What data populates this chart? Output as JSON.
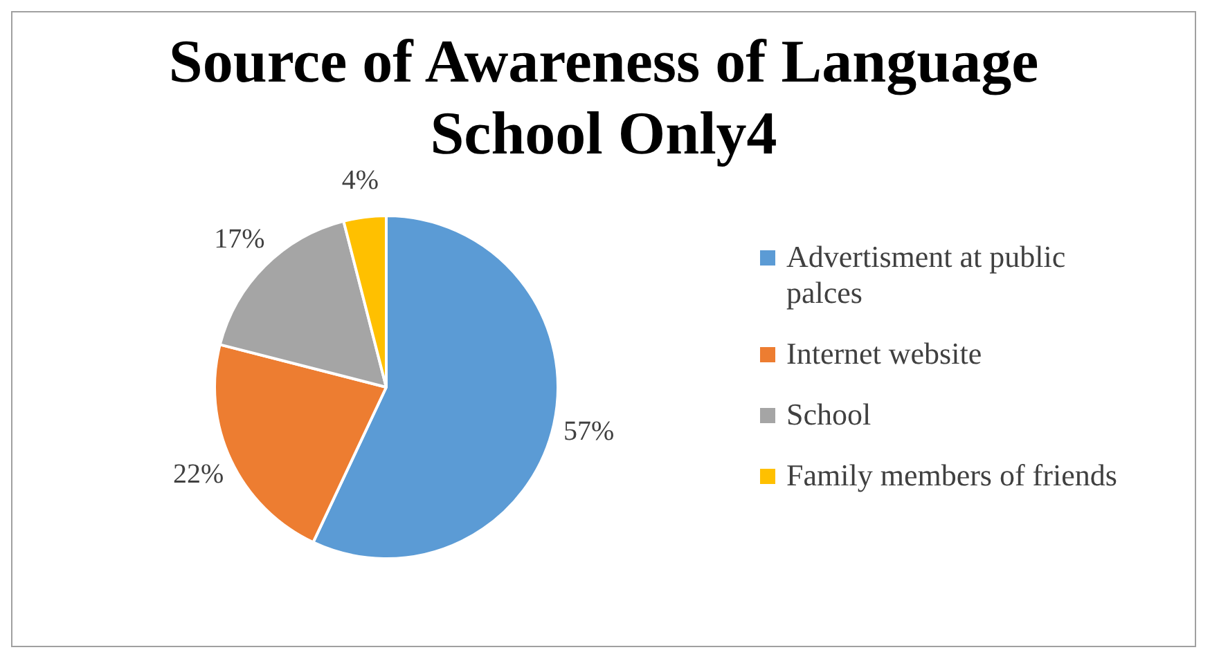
{
  "chart_data": {
    "type": "pie",
    "title": "Source of Awareness of Language School Only4",
    "categories": [
      "Advertisment at public palces",
      "Internet website",
      "School",
      "Family members of friends"
    ],
    "values": [
      57,
      22,
      17,
      4
    ],
    "colors": [
      "#5b9bd5",
      "#ed7d31",
      "#a5a5a5",
      "#ffc000"
    ],
    "value_labels": [
      "57%",
      "22%",
      "17%",
      "4%"
    ],
    "legend": "right"
  }
}
